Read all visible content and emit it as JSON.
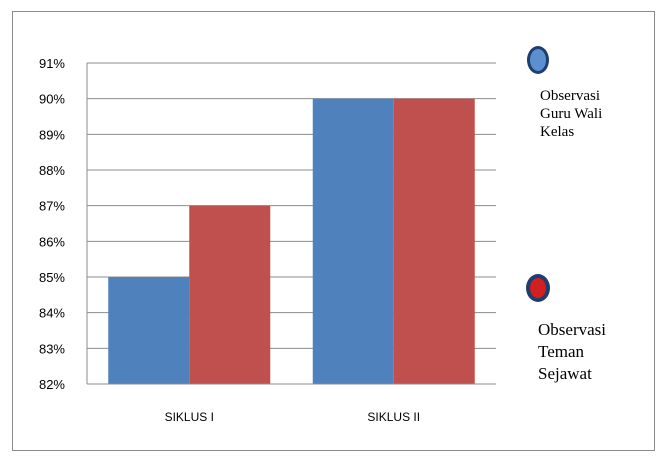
{
  "chart_data": {
    "type": "bar",
    "categories": [
      "SIKLUS I",
      "SIKLUS II"
    ],
    "series": [
      {
        "name": "Observasi\nGuru Wali\nKelas",
        "values": [
          85,
          90
        ],
        "color": "#4f81bd",
        "marker_color": "#5b8fd0"
      },
      {
        "name": "Observasi\nTeman\nSejawat",
        "values": [
          87,
          90
        ],
        "color": "#c0504d",
        "marker_color": "#d21f1f"
      }
    ],
    "ylim": [
      82,
      91
    ],
    "y_ticks": [
      "82%",
      "83%",
      "84%",
      "85%",
      "86%",
      "87%",
      "88%",
      "89%",
      "90%",
      "91%"
    ],
    "grid": true,
    "legend_position": "right"
  }
}
